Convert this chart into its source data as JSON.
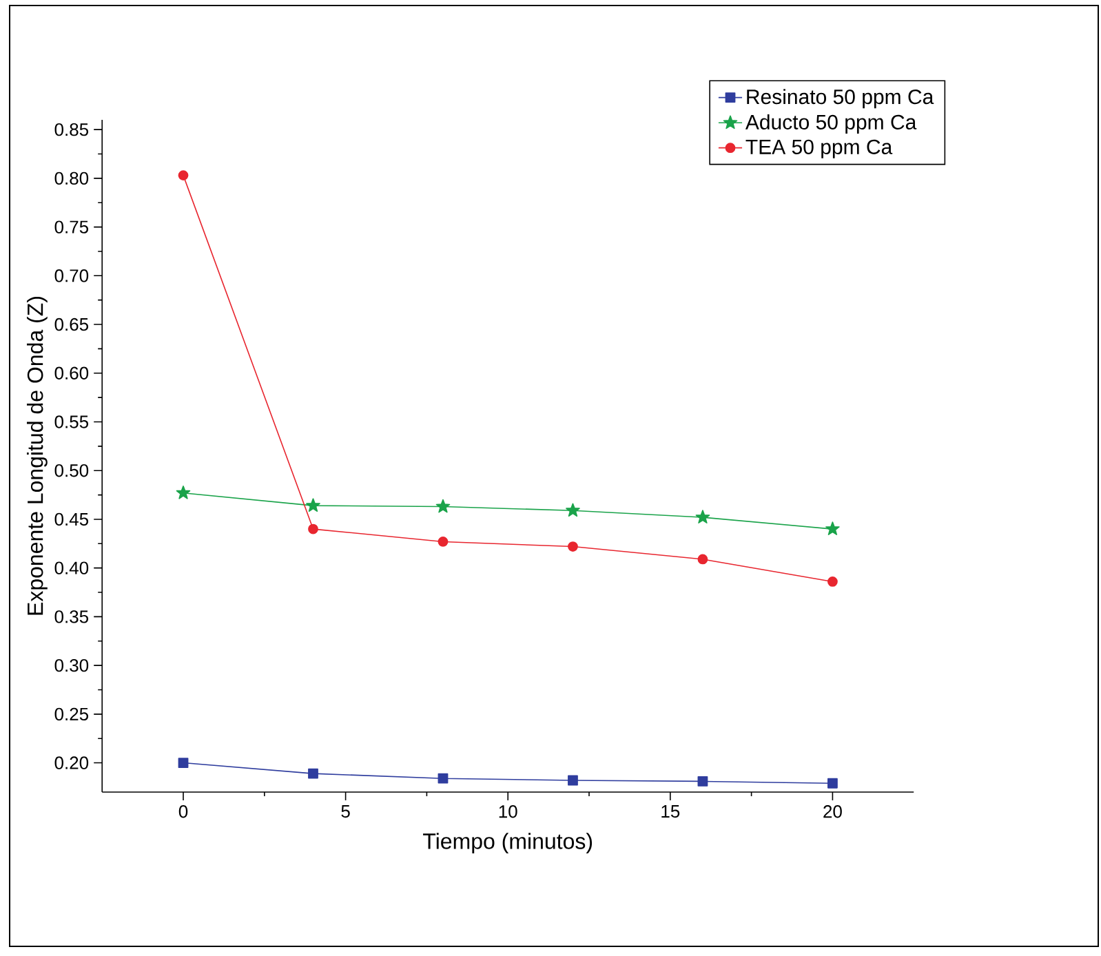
{
  "chart_data": {
    "type": "line",
    "xlabel": "Tiempo (minutos)",
    "ylabel": "Exponente Longitud de Onda (Z)",
    "x": [
      0,
      4,
      8,
      12,
      16,
      20
    ],
    "series": [
      {
        "name": "Resinato 50 ppm Ca",
        "color": "#2f3d9e",
        "marker": "square",
        "values": [
          0.2,
          0.189,
          0.184,
          0.182,
          0.181,
          0.179
        ]
      },
      {
        "name": "Aducto 50 ppm Ca",
        "color": "#1aa34a",
        "marker": "star",
        "values": [
          0.477,
          0.464,
          0.463,
          0.459,
          0.452,
          0.44
        ]
      },
      {
        "name": "TEA 50 ppm Ca",
        "color": "#e8262f",
        "marker": "circle",
        "values": [
          0.803,
          0.44,
          0.427,
          0.422,
          0.409,
          0.386
        ]
      }
    ],
    "xlim": [
      -2.5,
      22.5
    ],
    "ylim": [
      0.17,
      0.86
    ],
    "xticks": [
      0,
      5,
      10,
      15,
      20
    ],
    "yticks": [
      {
        "value": 0.2,
        "label": "0.20"
      },
      {
        "value": 0.25,
        "label": "0.25"
      },
      {
        "value": 0.3,
        "label": "0.30"
      },
      {
        "value": 0.35,
        "label": "0.35"
      },
      {
        "value": 0.4,
        "label": "0.40"
      },
      {
        "value": 0.45,
        "label": "0.45"
      },
      {
        "value": 0.5,
        "label": "0.50"
      },
      {
        "value": 0.55,
        "label": "0.55"
      },
      {
        "value": 0.6,
        "label": "0.60"
      },
      {
        "value": 0.65,
        "label": "0.65"
      },
      {
        "value": 0.7,
        "label": "0.70"
      },
      {
        "value": 0.75,
        "label": "0.75"
      },
      {
        "value": 0.8,
        "label": "0.80"
      },
      {
        "value": 0.85,
        "label": "0.85"
      }
    ],
    "legend": "top right",
    "line_style": "solid",
    "grid": false
  }
}
